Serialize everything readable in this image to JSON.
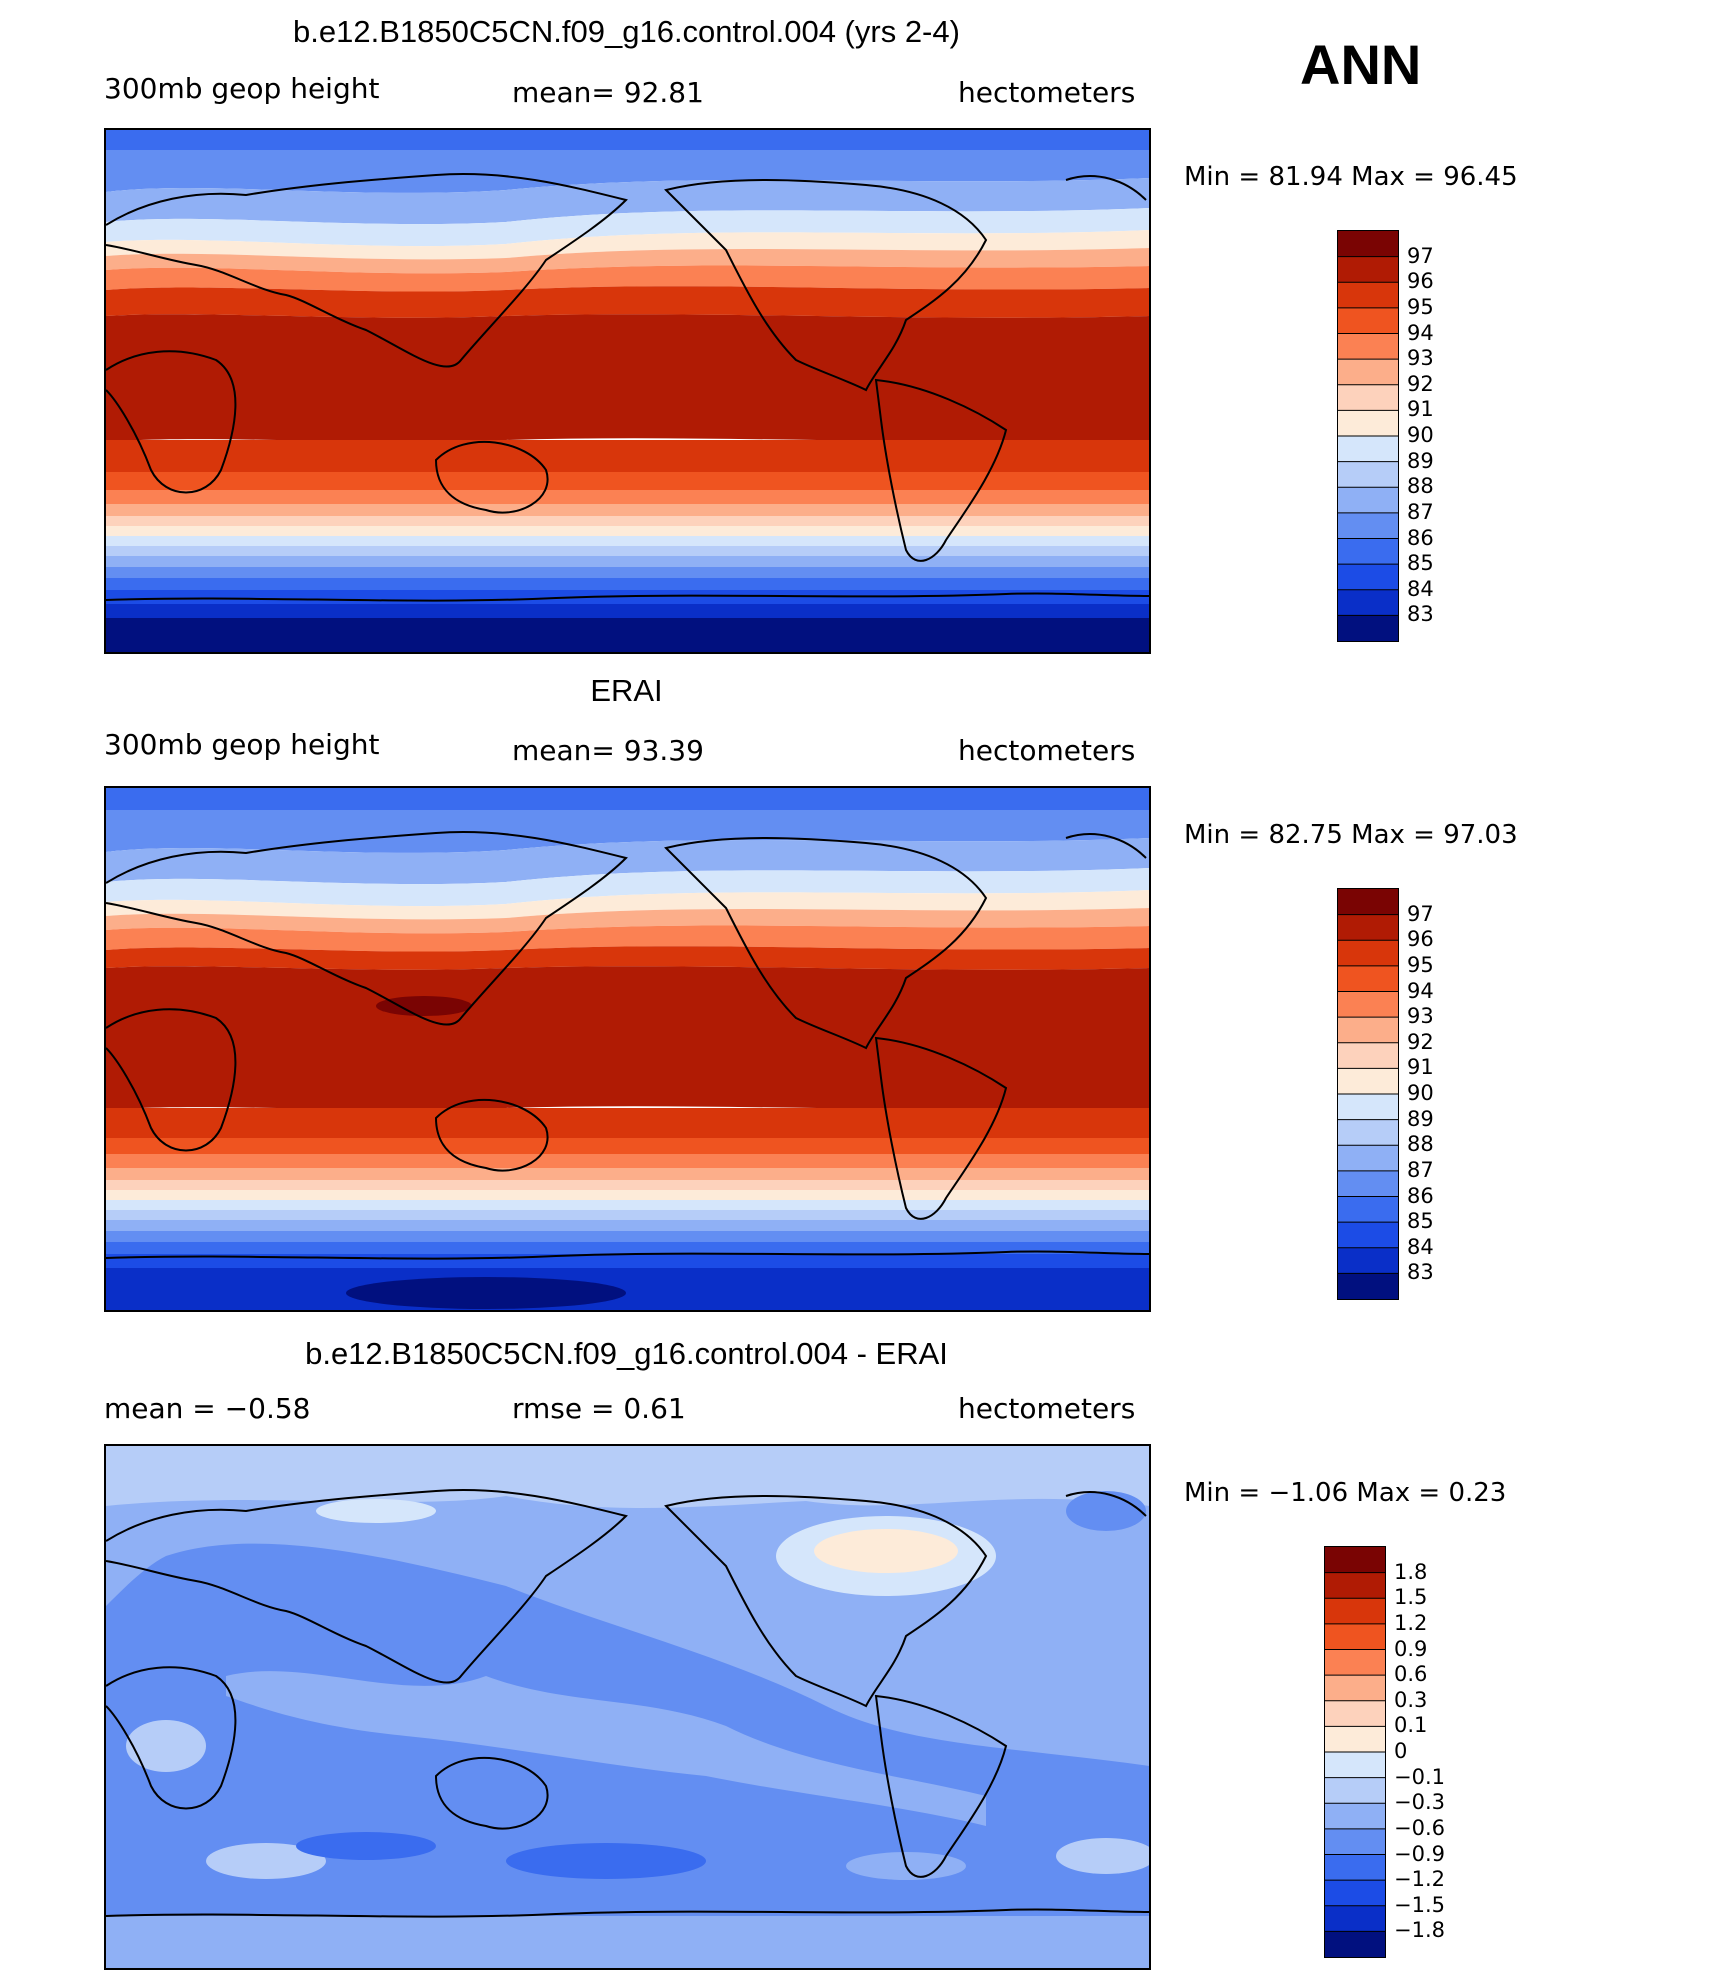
{
  "season": "ANN",
  "panels": [
    {
      "id": "model",
      "title": "b.e12.B1850C5CN.f09_g16.control.004 (yrs 2-4)",
      "left_label": "300mb  geop  height",
      "center_label": "mean=   92.81",
      "units": "hectometers",
      "min_max": "Min  =    81.94  Max  =    96.45",
      "colorbar": {
        "labels": [
          "97",
          "96",
          "95",
          "94",
          "93",
          "92",
          "91",
          "90",
          "89",
          "88",
          "87",
          "86",
          "85",
          "84",
          "83"
        ],
        "colors": [
          "#7a0403",
          "#b01b04",
          "#d8360b",
          "#ef5420",
          "#fb8153",
          "#fcae8a",
          "#fdd2bc",
          "#fdebd9",
          "#d5e6fb",
          "#b6cdf8",
          "#8fb0f5",
          "#638ef2",
          "#3a6cef",
          "#1c4ce6",
          "#0a2fc8",
          "#01107f"
        ]
      }
    },
    {
      "id": "obs",
      "title": "ERAI",
      "left_label": "300mb  geop  height",
      "center_label": "mean=   93.39",
      "units": "hectometers",
      "min_max": "Min  =    82.75  Max  =    97.03",
      "colorbar": {
        "labels": [
          "97",
          "96",
          "95",
          "94",
          "93",
          "92",
          "91",
          "90",
          "89",
          "88",
          "87",
          "86",
          "85",
          "84",
          "83"
        ],
        "colors": [
          "#7a0403",
          "#b01b04",
          "#d8360b",
          "#ef5420",
          "#fb8153",
          "#fcae8a",
          "#fdd2bc",
          "#fdebd9",
          "#d5e6fb",
          "#b6cdf8",
          "#8fb0f5",
          "#638ef2",
          "#3a6cef",
          "#1c4ce6",
          "#0a2fc8",
          "#01107f"
        ]
      }
    },
    {
      "id": "diff",
      "title": "b.e12.B1850C5CN.f09_g16.control.004 - ERAI",
      "left_label": "mean  =    −0.58",
      "center_label": "rmse  =     0.61",
      "units": "hectometers",
      "min_max": "Min  =   −1.06  Max  =     0.23",
      "colorbar": {
        "labels": [
          "1.8",
          "1.5",
          "1.2",
          "0.9",
          "0.6",
          "0.3",
          "0.1",
          "0",
          "−0.1",
          "−0.3",
          "−0.6",
          "−0.9",
          "−1.2",
          "−1.5",
          "−1.8"
        ],
        "colors": [
          "#7a0403",
          "#b01b04",
          "#d8360b",
          "#ef5420",
          "#fb8153",
          "#fcae8a",
          "#fdd2bc",
          "#fdebd9",
          "#d5e6fb",
          "#b6cdf8",
          "#8fb0f5",
          "#638ef2",
          "#3a6cef",
          "#1c4ce6",
          "#0a2fc8",
          "#01107f"
        ]
      }
    }
  ],
  "chart_data": [
    {
      "type": "heatmap",
      "title": "b.e12.B1850C5CN.f09_g16.control.004 (yrs 2-4)",
      "variable": "300mb geop height",
      "units": "hectometers",
      "mean": 92.81,
      "min": 81.94,
      "max": 96.45,
      "contour_levels": [
        83,
        84,
        85,
        86,
        87,
        88,
        89,
        90,
        91,
        92,
        93,
        94,
        95,
        96,
        97
      ]
    },
    {
      "type": "heatmap",
      "title": "ERAI",
      "variable": "300mb geop height",
      "units": "hectometers",
      "mean": 93.39,
      "min": 82.75,
      "max": 97.03,
      "contour_levels": [
        83,
        84,
        85,
        86,
        87,
        88,
        89,
        90,
        91,
        92,
        93,
        94,
        95,
        96,
        97
      ]
    },
    {
      "type": "heatmap",
      "title": "b.e12.B1850C5CN.f09_g16.control.004 - ERAI",
      "units": "hectometers",
      "mean": -0.58,
      "rmse": 0.61,
      "min": -1.06,
      "max": 0.23,
      "contour_levels": [
        -1.8,
        -1.5,
        -1.2,
        -0.9,
        -0.6,
        -0.3,
        -0.1,
        0,
        0.1,
        0.3,
        0.6,
        0.9,
        1.2,
        1.5,
        1.8
      ]
    }
  ]
}
